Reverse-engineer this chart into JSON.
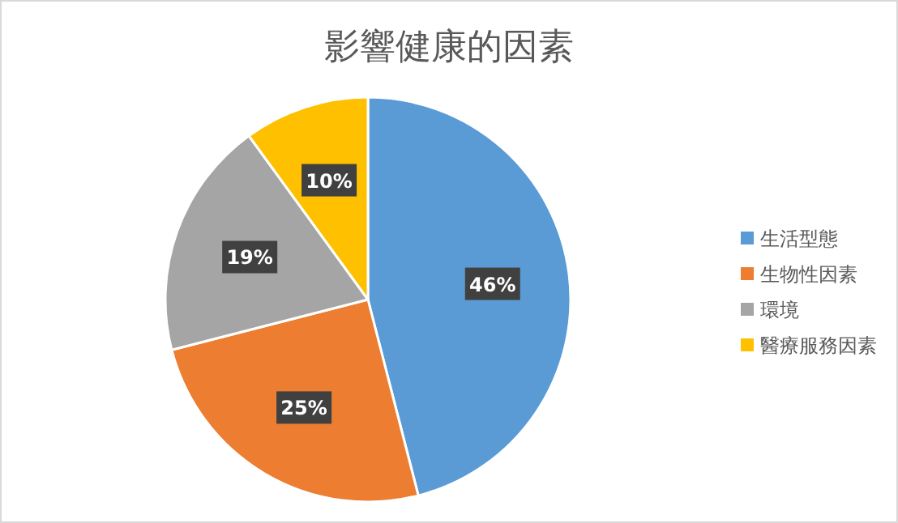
{
  "chart_data": {
    "type": "pie",
    "title": "影響健康的因素",
    "categories": [
      "生活型態",
      "生物性因素",
      "環境",
      "醫療服務因素"
    ],
    "values": [
      46,
      25,
      19,
      10
    ],
    "colors": [
      "#5b9bd5",
      "#ed7d31",
      "#a5a5a5",
      "#ffc000"
    ],
    "value_labels": [
      "46%",
      "25%",
      "19%",
      "10%"
    ],
    "legend": "right"
  }
}
